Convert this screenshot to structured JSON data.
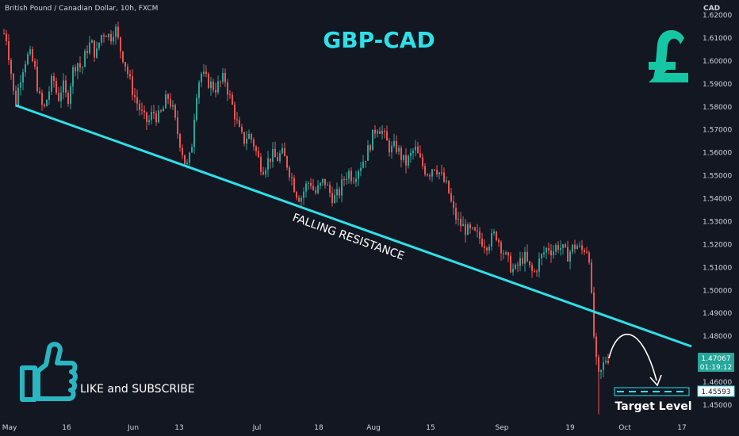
{
  "header": {
    "symbol_line": "British Pound / Canadian Dollar, 10h, FXCM",
    "currency": "CAD"
  },
  "chart_data": {
    "type": "candlestick",
    "title": "GBP-CAD",
    "annotation_resistance": "FALLING RESISTANCE",
    "annotation_target": "Target Level",
    "callout": "LIKE and SUBSCRIBE",
    "y_ticks": [
      "1.62000",
      "1.61000",
      "1.60000",
      "1.59000",
      "1.58000",
      "1.57000",
      "1.56000",
      "1.55000",
      "1.54000",
      "1.53000",
      "1.52000",
      "1.51000",
      "1.50000",
      "1.49000",
      "1.48000",
      "1.47000",
      "1.46000",
      "1.45000"
    ],
    "y_tick_values": [
      1.62,
      1.61,
      1.6,
      1.59,
      1.58,
      1.57,
      1.56,
      1.55,
      1.54,
      1.53,
      1.52,
      1.51,
      1.5,
      1.49,
      1.48,
      1.47,
      1.46,
      1.45
    ],
    "ylim": [
      1.445,
      1.622
    ],
    "x_ticks": [
      "May",
      "16",
      "Jun",
      "13",
      "Jul",
      "18",
      "Aug",
      "15",
      "Sep",
      "19",
      "Oct",
      "17"
    ],
    "current_price": "1.47067",
    "countdown": "01:19:12",
    "target_price": "1.45593",
    "target_value": 1.45593,
    "current_value": 1.47067,
    "resistance_line": [
      {
        "x": "May 2",
        "y": 1.5805
      },
      {
        "x": "Oct 20",
        "y": 1.4705
      }
    ],
    "price_path": [
      [
        0,
        1.6
      ],
      [
        5,
        1.615
      ],
      [
        12,
        1.598
      ],
      [
        18,
        1.58
      ],
      [
        24,
        1.592
      ],
      [
        30,
        1.6
      ],
      [
        36,
        1.603
      ],
      [
        42,
        1.598
      ],
      [
        48,
        1.585
      ],
      [
        54,
        1.578
      ],
      [
        60,
        1.586
      ],
      [
        66,
        1.593
      ],
      [
        72,
        1.583
      ],
      [
        78,
        1.59
      ],
      [
        84,
        1.582
      ],
      [
        90,
        1.595
      ],
      [
        96,
        1.6
      ],
      [
        102,
        1.596
      ],
      [
        108,
        1.605
      ],
      [
        114,
        1.608
      ],
      [
        120,
        1.602
      ],
      [
        126,
        1.611
      ],
      [
        132,
        1.613
      ],
      [
        138,
        1.61
      ],
      [
        144,
        1.615
      ],
      [
        150,
        1.606
      ],
      [
        156,
        1.6
      ],
      [
        162,
        1.592
      ],
      [
        168,
        1.585
      ],
      [
        174,
        1.58
      ],
      [
        180,
        1.575
      ],
      [
        186,
        1.573
      ],
      [
        192,
        1.578
      ],
      [
        198,
        1.575
      ],
      [
        204,
        1.578
      ],
      [
        210,
        1.585
      ],
      [
        216,
        1.58
      ],
      [
        222,
        1.57
      ],
      [
        228,
        1.562
      ],
      [
        234,
        1.553
      ],
      [
        240,
        1.56
      ],
      [
        246,
        1.585
      ],
      [
        252,
        1.595
      ],
      [
        258,
        1.592
      ],
      [
        264,
        1.59
      ],
      [
        270,
        1.588
      ],
      [
        276,
        1.59
      ],
      [
        282,
        1.593
      ],
      [
        288,
        1.585
      ],
      [
        294,
        1.578
      ],
      [
        300,
        1.57
      ],
      [
        306,
        1.565
      ],
      [
        312,
        1.568
      ],
      [
        318,
        1.565
      ],
      [
        324,
        1.558
      ],
      [
        330,
        1.553
      ],
      [
        336,
        1.556
      ],
      [
        342,
        1.559
      ],
      [
        348,
        1.557
      ],
      [
        354,
        1.56
      ],
      [
        360,
        1.556
      ],
      [
        366,
        1.55
      ],
      [
        372,
        1.543
      ],
      [
        378,
        1.54
      ],
      [
        384,
        1.545
      ],
      [
        390,
        1.548
      ],
      [
        396,
        1.542
      ],
      [
        402,
        1.545
      ],
      [
        408,
        1.548
      ],
      [
        414,
        1.543
      ],
      [
        420,
        1.54
      ],
      [
        426,
        1.542
      ],
      [
        432,
        1.548
      ],
      [
        438,
        1.552
      ],
      [
        444,
        1.549
      ],
      [
        450,
        1.553
      ],
      [
        456,
        1.556
      ],
      [
        462,
        1.56
      ],
      [
        468,
        1.566
      ],
      [
        474,
        1.572
      ],
      [
        480,
        1.57
      ],
      [
        486,
        1.565
      ],
      [
        492,
        1.561
      ],
      [
        498,
        1.563
      ],
      [
        504,
        1.559
      ],
      [
        510,
        1.555
      ],
      [
        516,
        1.558
      ],
      [
        522,
        1.562
      ],
      [
        528,
        1.557
      ],
      [
        534,
        1.553
      ],
      [
        540,
        1.551
      ],
      [
        546,
        1.555
      ],
      [
        552,
        1.552
      ],
      [
        558,
        1.548
      ],
      [
        564,
        1.544
      ],
      [
        570,
        1.535
      ],
      [
        576,
        1.53
      ],
      [
        582,
        1.528
      ],
      [
        588,
        1.526
      ],
      [
        594,
        1.525
      ],
      [
        600,
        1.524
      ],
      [
        606,
        1.522
      ],
      [
        612,
        1.52
      ],
      [
        618,
        1.522
      ],
      [
        624,
        1.525
      ],
      [
        630,
        1.52
      ],
      [
        636,
        1.515
      ],
      [
        642,
        1.511
      ],
      [
        648,
        1.508
      ],
      [
        654,
        1.512
      ],
      [
        660,
        1.515
      ],
      [
        666,
        1.51
      ],
      [
        672,
        1.507
      ],
      [
        678,
        1.512
      ],
      [
        684,
        1.516
      ],
      [
        690,
        1.519
      ],
      [
        696,
        1.517
      ],
      [
        702,
        1.52
      ],
      [
        708,
        1.518
      ],
      [
        714,
        1.515
      ],
      [
        720,
        1.518
      ],
      [
        726,
        1.52
      ],
      [
        732,
        1.517
      ],
      [
        738,
        1.519
      ],
      [
        742,
        1.515
      ],
      [
        746,
        1.49
      ],
      [
        750,
        1.47
      ],
      [
        754,
        1.462
      ],
      [
        758,
        1.465
      ],
      [
        762,
        1.47
      ],
      [
        766,
        1.4707
      ]
    ]
  }
}
